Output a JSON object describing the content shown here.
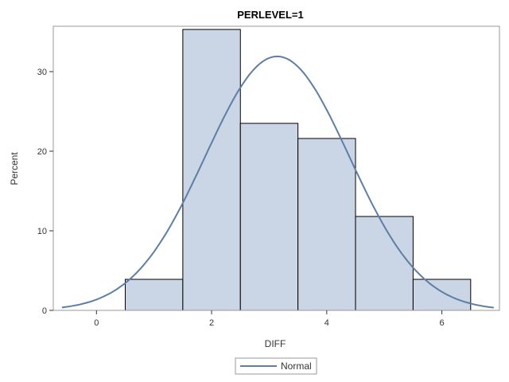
{
  "chart_data": {
    "type": "bar",
    "subtype": "histogram",
    "title": "PERLEVEL=1",
    "xlabel": "DIFF",
    "ylabel": "Percent",
    "bins": [
      {
        "start": 0.5,
        "end": 1.5,
        "value": 3.9
      },
      {
        "start": 1.5,
        "end": 2.5,
        "value": 35.3
      },
      {
        "start": 2.5,
        "end": 3.5,
        "value": 23.5
      },
      {
        "start": 3.5,
        "end": 4.5,
        "value": 21.6
      },
      {
        "start": 4.5,
        "end": 5.5,
        "value": 11.8
      },
      {
        "start": 5.5,
        "end": 6.5,
        "value": 3.9
      }
    ],
    "xlim": [
      -0.75,
      7.0
    ],
    "ylim": [
      0,
      35.7
    ],
    "xticks": [
      0,
      2,
      4,
      6
    ],
    "yticks": [
      0,
      10,
      20,
      30
    ],
    "curve": {
      "name": "Normal",
      "type": "normal",
      "mean": 3.14,
      "sd": 1.25,
      "xrange": [
        -0.6,
        6.9
      ]
    },
    "legend": {
      "position": "bottom-center",
      "entries": [
        "Normal"
      ]
    },
    "grid": false,
    "colors": {
      "bar_fill": "#cad5e5",
      "bar_stroke": "#000000",
      "curve": "#5e7ea3",
      "frame": "#999999"
    }
  }
}
